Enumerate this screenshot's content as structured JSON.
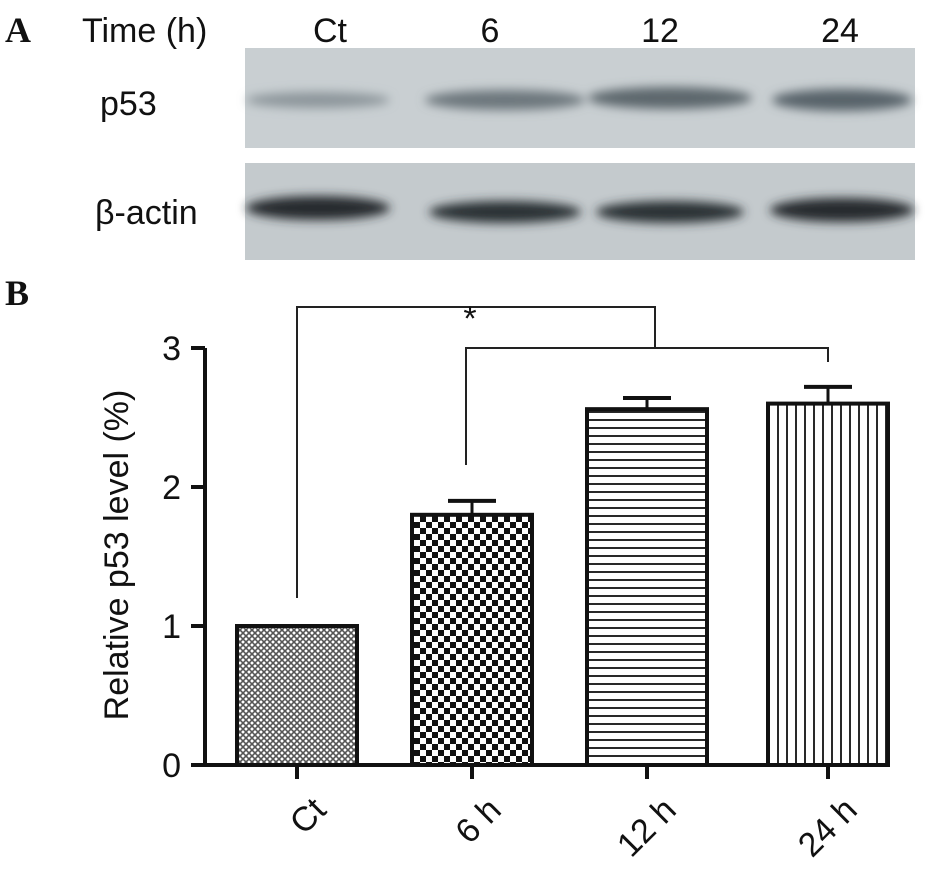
{
  "panel_a": {
    "label": "A",
    "time_label": "Time (h)",
    "lanes": [
      "Ct",
      "6",
      "12",
      "24"
    ],
    "rows": [
      "p53",
      "β-actin"
    ]
  },
  "chart_data": {
    "type": "bar",
    "panel_label": "B",
    "ylabel": "Relative p53 level (%)",
    "categories": [
      "Ct",
      "6 h",
      "12 h",
      "24 h"
    ],
    "values": [
      1,
      1.8,
      2.56,
      2.6
    ],
    "errors": [
      0,
      0.1,
      0.08,
      0.12
    ],
    "patterns": [
      "crosshatch",
      "checker",
      "hlines",
      "vlines"
    ],
    "ylim": [
      0,
      3
    ],
    "yticks": [
      0,
      1,
      2,
      3
    ],
    "annotation": "*"
  }
}
